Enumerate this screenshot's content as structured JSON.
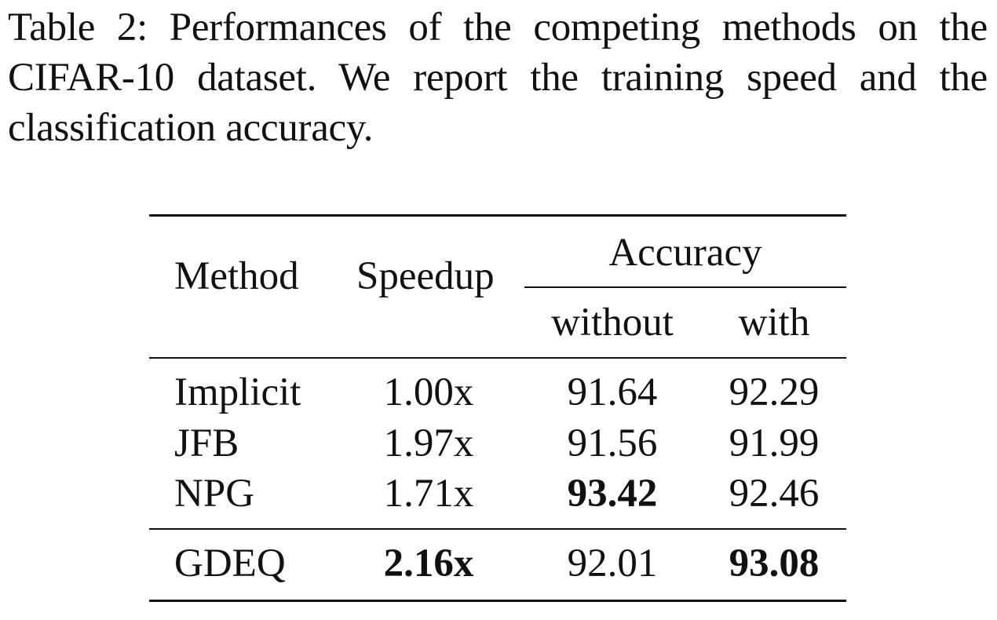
{
  "caption": {
    "lines": [
      "Table 2: Performances of the competing methods on the",
      "CIFAR-10 dataset. We report the training speed and the",
      "classification accuracy."
    ]
  },
  "table": {
    "headers": {
      "method": "Method",
      "speedup": "Speedup",
      "accuracy": "Accuracy",
      "without": "without",
      "with": "with"
    },
    "rows": [
      {
        "method": "Implicit",
        "speedup": "1.00x",
        "without": "91.64",
        "with": "92.29"
      },
      {
        "method": "JFB",
        "speedup": "1.97x",
        "without": "91.56",
        "with": "91.99"
      },
      {
        "method": "NPG",
        "speedup": "1.71x",
        "without": "93.42",
        "with": "92.46"
      },
      {
        "method": "GDEQ",
        "speedup": "2.16x",
        "without": "92.01",
        "with": "93.08"
      }
    ]
  }
}
